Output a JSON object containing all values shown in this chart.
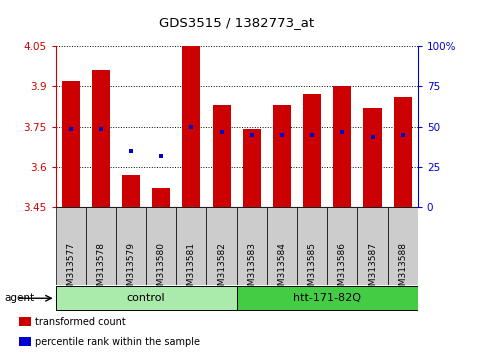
{
  "title": "GDS3515 / 1382773_at",
  "samples": [
    "GSM313577",
    "GSM313578",
    "GSM313579",
    "GSM313580",
    "GSM313581",
    "GSM313582",
    "GSM313583",
    "GSM313584",
    "GSM313585",
    "GSM313586",
    "GSM313587",
    "GSM313588"
  ],
  "bar_values": [
    3.92,
    3.96,
    3.57,
    3.52,
    4.05,
    3.83,
    3.74,
    3.83,
    3.87,
    3.9,
    3.82,
    3.86
  ],
  "percentile_values": [
    3.74,
    3.74,
    3.66,
    3.64,
    3.75,
    3.73,
    3.72,
    3.72,
    3.72,
    3.73,
    3.71,
    3.72
  ],
  "ymin": 3.45,
  "ymax": 4.05,
  "yticks": [
    3.45,
    3.6,
    3.75,
    3.9,
    4.05
  ],
  "ytick_labels": [
    "3.45",
    "3.6",
    "3.75",
    "3.9",
    "4.05"
  ],
  "y2ticks": [
    0,
    25,
    50,
    75,
    100
  ],
  "y2tick_labels": [
    "0",
    "25",
    "50",
    "75",
    "100%"
  ],
  "bar_color": "#cc0000",
  "percentile_color": "#0000cc",
  "bar_width": 0.6,
  "groups": [
    {
      "label": "control",
      "start": 0,
      "end": 5,
      "color": "#aaeaaa"
    },
    {
      "label": "htt-171-82Q",
      "start": 6,
      "end": 11,
      "color": "#44cc44"
    }
  ],
  "agent_label": "agent",
  "legend_items": [
    {
      "label": "transformed count",
      "color": "#cc0000"
    },
    {
      "label": "percentile rank within the sample",
      "color": "#0000cc"
    }
  ],
  "grid_color": "black",
  "tick_color_left": "#cc0000",
  "tick_color_right": "#0000cc",
  "sample_bg_color": "#cccccc",
  "figwidth": 4.83,
  "figheight": 3.54,
  "dpi": 100
}
